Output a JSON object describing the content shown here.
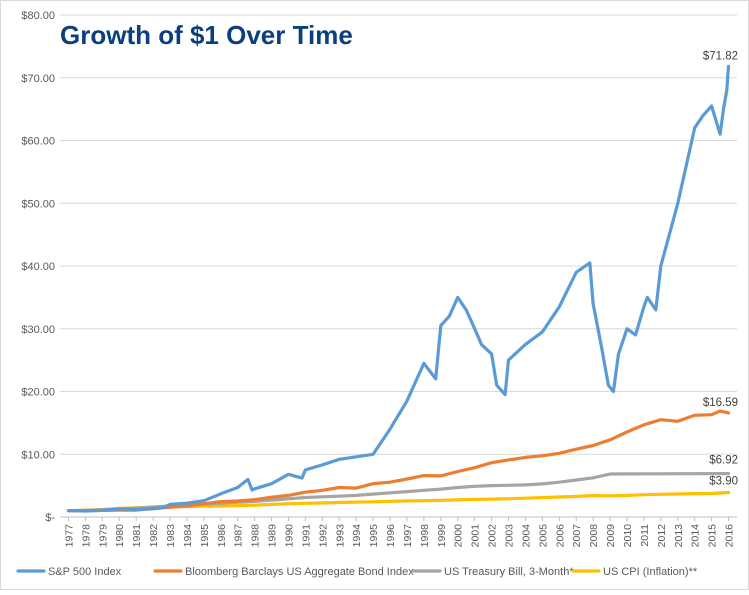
{
  "chart_data": {
    "type": "line",
    "title": "Growth of $1 Over Time",
    "xlabel": "",
    "ylabel": "",
    "ylim": [
      0,
      80
    ],
    "xlim": [
      1977,
      2016
    ],
    "y_ticks": [
      0,
      10,
      20,
      30,
      40,
      50,
      60,
      70,
      80
    ],
    "y_tick_labels": [
      "$-",
      "$10.00",
      "$20.00",
      "$30.00",
      "$40.00",
      "$50.00",
      "$60.00",
      "$70.00",
      "$80.00"
    ],
    "x_tick_labels": [
      "1977",
      "1978",
      "1979",
      "1980",
      "1981",
      "1982",
      "1983",
      "1984",
      "1985",
      "1986",
      "1987",
      "1988",
      "1989",
      "1990",
      "1991",
      "1992",
      "1993",
      "1994",
      "1995",
      "1996",
      "1997",
      "1998",
      "1999",
      "2000",
      "2001",
      "2002",
      "2003",
      "2004",
      "2005",
      "2006",
      "2007",
      "2008",
      "2009",
      "2010",
      "2011",
      "2012",
      "2013",
      "2014",
      "2015",
      "2016"
    ],
    "grid": true,
    "legend_position": "bottom",
    "series": [
      {
        "name": "S&P 500 Index",
        "color": "#5b9bd5",
        "end_label": "$71.82",
        "x": [
          1977,
          1978,
          1979,
          1980,
          1981,
          1982,
          1982.6,
          1983,
          1984,
          1985,
          1986,
          1987,
          1987.6,
          1987.85,
          1988,
          1989,
          1990,
          1990.8,
          1991,
          1992,
          1993,
          1994,
          1995,
          1996,
          1997,
          1998,
          1998.7,
          1999,
          1999.5,
          2000,
          2000.5,
          2001,
          2001.4,
          2002,
          2002.3,
          2002.8,
          2003,
          2004,
          2005,
          2006,
          2007,
          2007.8,
          2008,
          2008.5,
          2008.9,
          2009.2,
          2009.5,
          2010,
          2010.5,
          2011,
          2011.2,
          2011.7,
          2012,
          2013,
          2014,
          2014.5,
          2015,
          2015.5,
          2015.7,
          2015.9,
          2016
        ],
        "values": [
          1.0,
          0.95,
          1.05,
          1.3,
          1.2,
          1.3,
          1.5,
          2.0,
          2.2,
          2.6,
          3.7,
          4.7,
          6.0,
          4.3,
          4.5,
          5.3,
          6.8,
          6.2,
          7.5,
          8.3,
          9.2,
          9.6,
          10.0,
          14.0,
          18.5,
          24.5,
          22.0,
          30.5,
          32.0,
          35.0,
          33.0,
          30.0,
          27.5,
          26.0,
          21.0,
          19.5,
          25.0,
          27.5,
          29.5,
          33.5,
          39.0,
          40.5,
          34.0,
          27.0,
          21.0,
          20.0,
          26.0,
          30.0,
          29.0,
          33.5,
          35.0,
          33.0,
          40.0,
          50.0,
          62.0,
          64.0,
          65.5,
          61.0,
          65.0,
          68.0,
          71.82
        ]
      },
      {
        "name": "Bloomberg Barclays US Aggregate Bond Index",
        "color": "#ed7d31",
        "end_label": "$16.59",
        "x": [
          1977,
          1978,
          1979,
          1980,
          1981,
          1982,
          1983,
          1984,
          1985,
          1986,
          1987,
          1988,
          1989,
          1990,
          1991,
          1992,
          1993,
          1994,
          1995,
          1996,
          1997,
          1998,
          1999,
          2000,
          2001,
          2002,
          2003,
          2004,
          2005,
          2006,
          2007,
          2008,
          2009,
          2010,
          2011,
          2012,
          2013,
          2014,
          2015,
          2015.5,
          2016
        ],
        "values": [
          1.0,
          1.03,
          1.05,
          1.08,
          1.1,
          1.35,
          1.55,
          1.75,
          2.1,
          2.45,
          2.55,
          2.75,
          3.15,
          3.45,
          3.95,
          4.25,
          4.7,
          4.6,
          5.3,
          5.55,
          6.05,
          6.6,
          6.55,
          7.25,
          7.85,
          8.65,
          9.1,
          9.5,
          9.75,
          10.15,
          10.8,
          11.4,
          12.3,
          13.55,
          14.7,
          15.5,
          15.25,
          16.2,
          16.3,
          16.9,
          16.59
        ]
      },
      {
        "name": "US Treasury Bill, 3-Month*",
        "color": "#a5a5a5",
        "end_label": "$6.92",
        "x": [
          1977,
          1978,
          1979,
          1980,
          1981,
          1982,
          1983,
          1984,
          1985,
          1986,
          1987,
          1988,
          1989,
          1990,
          1991,
          1992,
          1993,
          1994,
          1995,
          1996,
          1997,
          1998,
          1999,
          2000,
          2001,
          2002,
          2003,
          2004,
          2005,
          2006,
          2007,
          2008,
          2009,
          2010,
          2011,
          2012,
          2013,
          2014,
          2015,
          2016
        ],
        "values": [
          1.0,
          1.05,
          1.13,
          1.25,
          1.4,
          1.6,
          1.75,
          1.9,
          2.07,
          2.22,
          2.35,
          2.5,
          2.7,
          2.9,
          3.1,
          3.22,
          3.32,
          3.45,
          3.65,
          3.85,
          4.05,
          4.25,
          4.45,
          4.7,
          4.9,
          5.0,
          5.05,
          5.12,
          5.28,
          5.55,
          5.9,
          6.25,
          6.85,
          6.87,
          6.88,
          6.89,
          6.9,
          6.9,
          6.91,
          6.92
        ]
      },
      {
        "name": "US CPI (Inflation)**",
        "color": "#ffc000",
        "end_label": "$3.90",
        "x": [
          1977,
          1978,
          1979,
          1980,
          1981,
          1982,
          1983,
          1984,
          1985,
          1986,
          1987,
          1988,
          1989,
          1990,
          1991,
          1992,
          1993,
          1994,
          1995,
          1996,
          1997,
          1998,
          1999,
          2000,
          2001,
          2002,
          2003,
          2004,
          2005,
          2006,
          2007,
          2008,
          2009,
          2010,
          2011,
          2012,
          2013,
          2014,
          2015,
          2016
        ],
        "values": [
          1.0,
          1.07,
          1.2,
          1.35,
          1.48,
          1.56,
          1.61,
          1.67,
          1.73,
          1.76,
          1.82,
          1.9,
          2.0,
          2.1,
          2.18,
          2.24,
          2.31,
          2.37,
          2.43,
          2.5,
          2.56,
          2.6,
          2.65,
          2.74,
          2.81,
          2.86,
          2.91,
          3.0,
          3.09,
          3.19,
          3.28,
          3.41,
          3.38,
          3.43,
          3.55,
          3.62,
          3.67,
          3.73,
          3.74,
          3.9
        ]
      }
    ]
  }
}
